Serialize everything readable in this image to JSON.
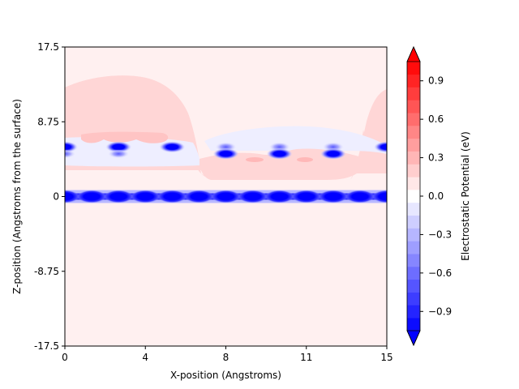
{
  "chart_data": {
    "type": "heatmap",
    "xlabel": "X-position (Angstroms)",
    "ylabel": "Z-position (Angstroms from the surface)",
    "xlim": [
      0,
      15
    ],
    "ylim": [
      -17.5,
      17.5
    ],
    "x_ticks": [
      "0",
      "4",
      "8",
      "11",
      "15"
    ],
    "x_tick_values": [
      0,
      3.75,
      7.5,
      11.25,
      15
    ],
    "y_ticks": [
      "17.5",
      "8.75",
      "0",
      "-8.75",
      "-17.5"
    ],
    "y_tick_values": [
      17.5,
      8.75,
      0,
      -8.75,
      -17.5
    ],
    "colorbar": {
      "label": "Electrostatic Potential (eV)",
      "range": [
        -1.05,
        1.05
      ],
      "tick_values": [
        0.9,
        0.6,
        0.3,
        0.0,
        -0.3,
        -0.6,
        -0.9
      ],
      "tick_labels": [
        "0.9",
        "0.6",
        "0.3",
        "0.0",
        "−0.3",
        "−0.6",
        "−0.9"
      ],
      "colormap": "bwr",
      "extend": "both"
    },
    "background_level": 0.05,
    "features": {
      "surface_row": {
        "z": 0.0,
        "value": -1.0,
        "atom_x": [
          0.0,
          1.25,
          2.5,
          3.75,
          5.0,
          6.25,
          7.5,
          8.75,
          10.0,
          11.25,
          12.5,
          13.75,
          15.0
        ]
      },
      "upper_atoms": [
        {
          "x": 0.0,
          "z": 5.8,
          "value": -1.0
        },
        {
          "x": 2.5,
          "z": 5.8,
          "value": -1.0
        },
        {
          "x": 5.0,
          "z": 5.8,
          "value": -1.0
        },
        {
          "x": 7.5,
          "z": 5.8,
          "value": -0.3
        },
        {
          "x": 10.0,
          "z": 5.8,
          "value": -0.3
        },
        {
          "x": 12.5,
          "z": 5.8,
          "value": -0.3
        },
        {
          "x": 15.0,
          "z": 5.8,
          "value": -1.0
        }
      ],
      "lower_atoms": [
        {
          "x": 0.0,
          "z": 5.0,
          "value": -0.3
        },
        {
          "x": 2.5,
          "z": 5.0,
          "value": -0.3
        },
        {
          "x": 7.5,
          "z": 5.0,
          "value": -1.0
        },
        {
          "x": 10.0,
          "z": 5.0,
          "value": -1.0
        },
        {
          "x": 12.5,
          "z": 5.0,
          "value": -1.0
        }
      ],
      "positive_region_level": 0.15,
      "negative_band_level": -0.05
    }
  }
}
